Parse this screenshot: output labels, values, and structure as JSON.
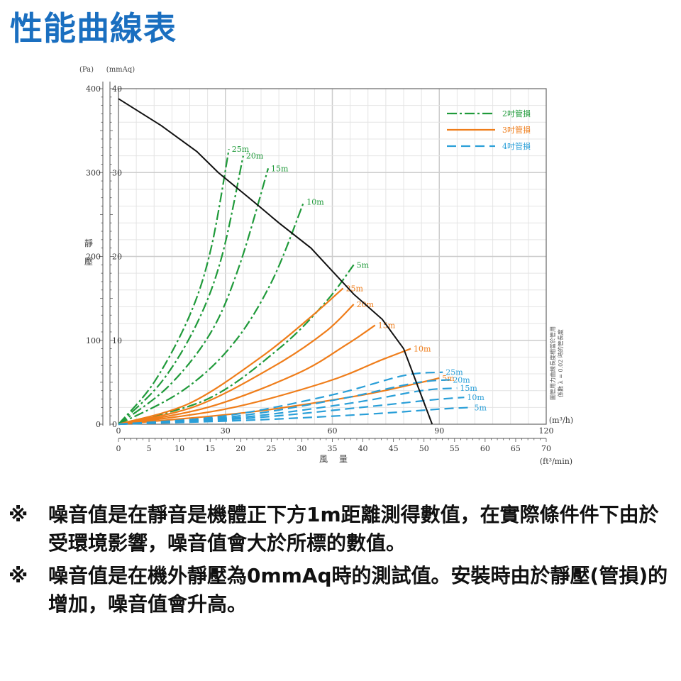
{
  "page": {
    "title": "性能曲線表"
  },
  "notes": [
    {
      "mark": "※",
      "text": "噪音值是在靜音是機體正下方1m距離測得數值，在實際條件件下由於受環境影響，噪音值會大於所標的數值。"
    },
    {
      "mark": "※",
      "text": "噪音值是在機外靜壓為0mmAq時的測試值。安裝時由於靜壓(管損)的增加，噪音值會升高。"
    }
  ],
  "chart_data": {
    "type": "line",
    "ylabel": "靜壓",
    "xlabel": "風量",
    "y_unit_left": "(Pa)",
    "y_unit_right": "(mmAq)",
    "x_unit_top": "(m³/h)",
    "x_unit_bottom": "(ft³/min)",
    "ylim_mmAq": [
      0,
      40
    ],
    "xlim_m3h": [
      0,
      120
    ],
    "y_ticks_pa": [
      "0",
      "100",
      "200",
      "300",
      "400"
    ],
    "y_ticks_mmAq": [
      "0",
      "10",
      "20",
      "30",
      "40"
    ],
    "x_ticks_m3h": [
      "0",
      "30",
      "60",
      "90",
      "120"
    ],
    "x_ticks_cfm": [
      "0",
      "5",
      "10",
      "15",
      "20",
      "25",
      "30",
      "35",
      "40",
      "45",
      "50",
      "55",
      "60",
      "65",
      "70"
    ],
    "side_note": [
      "圖管用力曲線長度相當於管用",
      "係數 λ = 0.02 時的管長度"
    ],
    "grid": true,
    "legend_position": "top-right",
    "colors": {
      "2in": "#1f9a3a",
      "3in": "#ef7d1a",
      "4in": "#2a9fd8",
      "fan": "#111111"
    },
    "legend": [
      {
        "label": "2吋管損",
        "key": "2in"
      },
      {
        "label": "3吋管損",
        "key": "3in"
      },
      {
        "label": "4吋管損",
        "key": "4in"
      }
    ],
    "fan_curve": {
      "x": [
        0,
        12,
        22,
        28,
        38,
        45,
        54,
        66,
        74,
        80,
        88
      ],
      "y": [
        38.8,
        35.6,
        32.5,
        30,
        26.5,
        24,
        21,
        15.5,
        12.5,
        9,
        0
      ]
    },
    "series": [
      {
        "key": "2in",
        "label": "25m",
        "x": [
          0,
          10,
          20,
          26,
          31
        ],
        "y": [
          0,
          5,
          13,
          21,
          32.8
        ]
      },
      {
        "key": "2in",
        "label": "20m",
        "x": [
          0,
          12,
          22,
          29,
          35
        ],
        "y": [
          0,
          5,
          12,
          20,
          32
        ]
      },
      {
        "key": "2in",
        "label": "15m",
        "x": [
          0,
          14,
          26,
          34,
          42
        ],
        "y": [
          0,
          4.5,
          11,
          19,
          30.5
        ]
      },
      {
        "key": "2in",
        "label": "10m",
        "x": [
          0,
          18,
          32,
          43,
          52
        ],
        "y": [
          0,
          4,
          9.5,
          17,
          26.5
        ]
      },
      {
        "key": "2in",
        "label": "5m",
        "x": [
          0,
          25,
          45,
          58,
          66
        ],
        "y": [
          0,
          3,
          9,
          14.5,
          19
        ]
      },
      {
        "key": "3in",
        "label": "25m",
        "x": [
          0,
          20,
          40,
          54,
          63
        ],
        "y": [
          0,
          2.5,
          8,
          12.8,
          16.2
        ]
      },
      {
        "key": "3in",
        "label": "20m",
        "x": [
          0,
          22,
          44,
          58,
          66
        ],
        "y": [
          0,
          2.2,
          7,
          11,
          14.3
        ]
      },
      {
        "key": "3in",
        "label": "15m",
        "x": [
          0,
          25,
          50,
          64,
          72
        ],
        "y": [
          0,
          2,
          6,
          9.5,
          11.8
        ]
      },
      {
        "key": "3in",
        "label": "10m",
        "x": [
          0,
          30,
          58,
          74,
          82
        ],
        "y": [
          0,
          1.8,
          5,
          7.7,
          9
        ]
      },
      {
        "key": "3in",
        "label": "5m",
        "x": [
          0,
          36,
          66,
          82,
          90
        ],
        "y": [
          0,
          1.4,
          3.3,
          4.7,
          5.5
        ]
      },
      {
        "key": "4in",
        "label": "25m",
        "x": [
          0,
          30,
          60,
          80,
          91
        ],
        "y": [
          0,
          1,
          3.5,
          5.8,
          6.2
        ]
      },
      {
        "key": "4in",
        "label": "20m",
        "x": [
          0,
          32,
          62,
          83,
          93
        ],
        "y": [
          0,
          0.9,
          3,
          4.9,
          5.3
        ]
      },
      {
        "key": "4in",
        "label": "15m",
        "x": [
          0,
          34,
          65,
          85,
          95
        ],
        "y": [
          0,
          0.8,
          2.5,
          4,
          4.3
        ]
      },
      {
        "key": "4in",
        "label": "10m",
        "x": [
          0,
          36,
          68,
          88,
          97
        ],
        "y": [
          0,
          0.7,
          2,
          2.9,
          3.2
        ]
      },
      {
        "key": "4in",
        "label": "5m",
        "x": [
          0,
          38,
          70,
          90,
          99
        ],
        "y": [
          0,
          0.5,
          1.2,
          1.8,
          2
        ]
      }
    ]
  }
}
